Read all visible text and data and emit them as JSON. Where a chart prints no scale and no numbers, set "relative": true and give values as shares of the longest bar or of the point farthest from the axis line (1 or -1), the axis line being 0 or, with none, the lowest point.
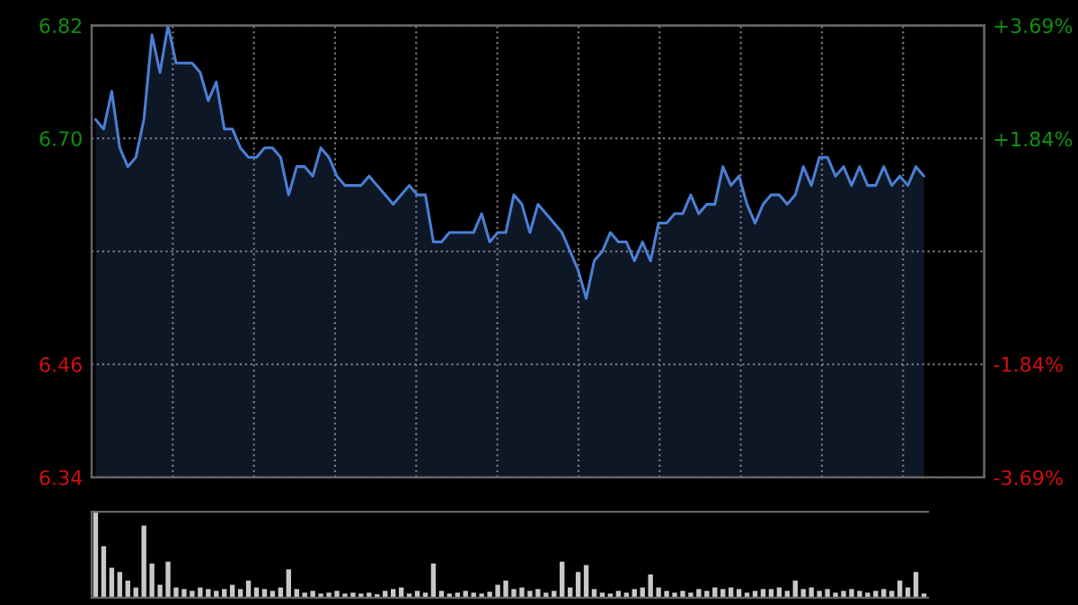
{
  "chart_data": [
    {
      "type": "area",
      "categories": [
        null,
        null,
        null,
        null,
        null,
        null,
        null,
        null,
        null,
        null,
        null,
        null,
        null,
        null,
        null,
        null,
        null,
        null,
        null,
        null,
        null,
        null,
        null,
        null,
        null,
        null,
        null,
        null,
        null,
        null,
        null,
        null,
        null,
        null,
        null,
        null,
        null,
        null,
        null,
        null,
        null,
        null,
        null,
        null,
        null,
        null,
        null,
        null,
        null,
        null,
        null,
        null,
        null,
        null,
        null,
        null,
        null,
        null,
        null,
        null,
        null,
        null,
        null,
        null,
        null,
        null,
        null,
        null,
        null,
        null,
        null,
        null,
        null,
        null,
        null,
        null,
        null,
        null,
        null,
        null,
        null,
        null,
        null,
        null,
        null,
        null,
        null,
        null,
        null,
        null,
        null,
        null,
        null,
        null,
        null,
        null,
        null,
        null,
        null,
        null,
        null,
        null,
        null,
        null
      ],
      "series": [
        {
          "color": "#4a7fd4",
          "values": [
            6.72,
            6.71,
            6.75,
            6.69,
            6.67,
            6.68,
            6.72,
            6.81,
            6.77,
            6.82,
            6.78,
            6.78,
            6.78,
            6.77,
            6.74,
            6.76,
            6.71,
            6.71,
            6.69,
            6.68,
            6.68,
            6.69,
            6.69,
            6.68,
            6.64,
            6.67,
            6.67,
            6.66,
            6.69,
            6.68,
            6.66,
            6.65,
            6.65,
            6.65,
            6.66,
            6.65,
            6.64,
            6.63,
            6.64,
            6.65,
            6.64,
            6.64,
            6.59,
            6.59,
            6.6,
            6.6,
            6.6,
            6.6,
            6.62,
            6.59,
            6.6,
            6.6,
            6.64,
            6.63,
            6.6,
            6.63,
            6.62,
            6.61,
            6.6,
            6.58,
            6.56,
            6.53,
            6.57,
            6.58,
            6.6,
            6.59,
            6.59,
            6.57,
            6.59,
            6.57,
            6.61,
            6.61,
            6.62,
            6.62,
            6.64,
            6.62,
            6.63,
            6.63,
            6.67,
            6.65,
            6.66,
            6.63,
            6.61,
            6.63,
            6.64,
            6.64,
            6.63,
            6.64,
            6.67,
            6.65,
            6.68,
            6.68,
            6.66,
            6.67,
            6.65,
            6.67,
            6.65,
            6.65,
            6.67,
            6.65,
            6.66,
            6.65,
            6.67,
            6.66
          ]
        }
      ],
      "ylim": [
        6.34,
        6.82
      ],
      "yticks": [
        6.82,
        {
          "value": 6.7,
          "label": "6.70"
        },
        {
          "value": 6.58,
          "label": null
        },
        6.46,
        6.34
      ],
      "y2lim": [
        -3.69,
        3.69
      ],
      "y2ticks": [
        {
          "value": 3.69,
          "label": "+3.69%"
        },
        {
          "value": 1.84,
          "label": "+1.84%"
        },
        {
          "value": 0,
          "label": null
        },
        {
          "value": -1.84,
          "label": "-1.84%"
        },
        {
          "value": -3.69,
          "label": "-3.69%"
        }
      ],
      "tick_labels": "y",
      "grid": true
    },
    {
      "type": "bar",
      "relative": true,
      "color": "#c8c8c8",
      "categories": [
        null,
        null,
        null,
        null,
        null,
        null,
        null,
        null,
        null,
        null,
        null,
        null,
        null,
        null,
        null,
        null,
        null,
        null,
        null,
        null,
        null,
        null,
        null,
        null,
        null,
        null,
        null,
        null,
        null,
        null,
        null,
        null,
        null,
        null,
        null,
        null,
        null,
        null,
        null,
        null,
        null,
        null,
        null,
        null,
        null,
        null,
        null,
        null,
        null,
        null,
        null,
        null,
        null,
        null,
        null,
        null,
        null,
        null,
        null,
        null,
        null,
        null,
        null,
        null,
        null,
        null,
        null,
        null,
        null,
        null,
        null,
        null,
        null,
        null,
        null,
        null,
        null,
        null,
        null,
        null,
        null,
        null,
        null,
        null,
        null,
        null,
        null,
        null,
        null,
        null,
        null,
        null,
        null,
        null,
        null,
        null,
        null,
        null,
        null,
        null,
        null,
        null,
        null,
        null
      ],
      "values": [
        1.0,
        0.6,
        0.35,
        0.3,
        0.2,
        0.12,
        0.84,
        0.4,
        0.15,
        0.42,
        0.12,
        0.1,
        0.08,
        0.12,
        0.1,
        0.08,
        0.1,
        0.15,
        0.1,
        0.2,
        0.12,
        0.1,
        0.08,
        0.12,
        0.33,
        0.1,
        0.06,
        0.08,
        0.05,
        0.06,
        0.08,
        0.05,
        0.06,
        0.05,
        0.06,
        0.04,
        0.08,
        0.1,
        0.12,
        0.05,
        0.08,
        0.06,
        0.4,
        0.08,
        0.05,
        0.06,
        0.08,
        0.06,
        0.05,
        0.07,
        0.15,
        0.2,
        0.1,
        0.12,
        0.08,
        0.1,
        0.06,
        0.08,
        0.42,
        0.12,
        0.3,
        0.38,
        0.1,
        0.06,
        0.05,
        0.08,
        0.06,
        0.1,
        0.12,
        0.27,
        0.12,
        0.08,
        0.06,
        0.08,
        0.06,
        0.1,
        0.08,
        0.12,
        0.1,
        0.12,
        0.1,
        0.06,
        0.08,
        0.1,
        0.1,
        0.12,
        0.08,
        0.2,
        0.1,
        0.12,
        0.08,
        0.1,
        0.06,
        0.08,
        0.1,
        0.08,
        0.06,
        0.08,
        0.1,
        0.08,
        0.2,
        0.12,
        0.3,
        0.05
      ]
    }
  ]
}
